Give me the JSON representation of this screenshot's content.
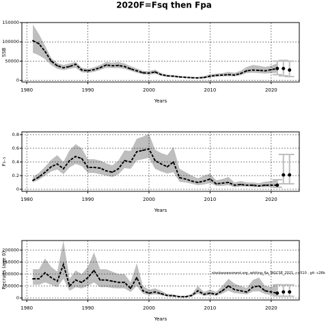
{
  "chart_data": [
    {
      "type": "line",
      "title": "2020F=Fsq then Fpa",
      "ylabel": "SSB",
      "xlabel": "Years",
      "x": [
        1981,
        1982,
        1983,
        1984,
        1985,
        1986,
        1987,
        1988,
        1989,
        1990,
        1991,
        1992,
        1993,
        1994,
        1995,
        1996,
        1997,
        1998,
        1999,
        2000,
        2001,
        2002,
        2003,
        2004,
        2005,
        2006,
        2007,
        2008,
        2009,
        2010,
        2011,
        2012,
        2013,
        2014,
        2015,
        2016,
        2017,
        2018,
        2019,
        2020,
        2021
      ],
      "values": [
        103000,
        95000,
        75000,
        50000,
        38000,
        33000,
        36000,
        42000,
        27000,
        25000,
        28000,
        33000,
        40000,
        38000,
        39000,
        36000,
        30000,
        25000,
        20000,
        19000,
        22000,
        15000,
        12000,
        11000,
        9000,
        8000,
        7000,
        6500,
        7500,
        11000,
        13000,
        14000,
        15000,
        14000,
        18000,
        25000,
        27000,
        26000,
        25000,
        28000,
        31000
      ],
      "lower": [
        72000,
        65000,
        55000,
        40000,
        30000,
        27000,
        30000,
        33000,
        21000,
        20000,
        22000,
        27000,
        33000,
        32000,
        32000,
        30000,
        25000,
        20000,
        16000,
        15000,
        17000,
        12000,
        9500,
        8500,
        7000,
        6000,
        5500,
        5000,
        5500,
        8000,
        10000,
        10500,
        11000,
        10500,
        13500,
        19000,
        20000,
        19000,
        18000,
        19000,
        20000
      ],
      "upper": [
        145000,
        120000,
        90000,
        58000,
        45000,
        40000,
        44000,
        48000,
        33000,
        30000,
        34000,
        40000,
        48000,
        46000,
        48000,
        44000,
        37000,
        31000,
        25000,
        24000,
        28000,
        19000,
        15000,
        14000,
        12000,
        10500,
        9500,
        9000,
        11000,
        16000,
        18000,
        19000,
        22000,
        20000,
        25000,
        35000,
        40000,
        38000,
        35000,
        38000,
        45000
      ],
      "forecast": {
        "x": [
          2021,
          2022,
          2023
        ],
        "values": [
          31000,
          31000,
          27000
        ],
        "lower": [
          15000,
          12000,
          10000
        ],
        "upper": [
          50000,
          52000,
          50000
        ]
      },
      "xlim": [
        1979.2,
        2024.6
      ],
      "xticks": [
        1980,
        1990,
        2000,
        2010,
        2020
      ],
      "ylim": [
        -4000,
        150000
      ],
      "yticks": [
        0,
        50000,
        100000,
        150000
      ],
      "grid": true,
      "color": "#000000",
      "band_color": "#bebebe",
      "forecast_color": "#bebebe"
    },
    {
      "type": "line",
      "ylabel": "F₃₋₅",
      "xlabel": "Years",
      "x": [
        1981,
        1982,
        1983,
        1984,
        1985,
        1986,
        1987,
        1988,
        1989,
        1990,
        1991,
        1992,
        1993,
        1994,
        1995,
        1996,
        1997,
        1998,
        1999,
        2000,
        2001,
        2002,
        2003,
        2004,
        2005,
        2006,
        2007,
        2008,
        2009,
        2010,
        2011,
        2012,
        2013,
        2014,
        2015,
        2016,
        2017,
        2018,
        2019,
        2020,
        2021
      ],
      "values": [
        0.13,
        0.18,
        0.25,
        0.33,
        0.37,
        0.3,
        0.42,
        0.48,
        0.45,
        0.32,
        0.32,
        0.31,
        0.27,
        0.25,
        0.3,
        0.42,
        0.4,
        0.55,
        0.57,
        0.59,
        0.42,
        0.37,
        0.33,
        0.4,
        0.17,
        0.15,
        0.12,
        0.1,
        0.12,
        0.15,
        0.08,
        0.09,
        0.1,
        0.06,
        0.07,
        0.06,
        0.06,
        0.05,
        0.06,
        0.06,
        0.06
      ],
      "lower": [
        0.1,
        0.14,
        0.2,
        0.26,
        0.29,
        0.22,
        0.32,
        0.37,
        0.34,
        0.24,
        0.24,
        0.22,
        0.2,
        0.18,
        0.22,
        0.31,
        0.3,
        0.42,
        0.44,
        0.46,
        0.3,
        0.26,
        0.23,
        0.25,
        0.11,
        0.1,
        0.08,
        0.06,
        0.07,
        0.09,
        0.05,
        0.05,
        0.06,
        0.03,
        0.04,
        0.04,
        0.03,
        0.03,
        0.03,
        0.03,
        0.03
      ],
      "upper": [
        0.18,
        0.24,
        0.33,
        0.43,
        0.5,
        0.4,
        0.57,
        0.66,
        0.6,
        0.44,
        0.44,
        0.42,
        0.38,
        0.35,
        0.42,
        0.57,
        0.56,
        0.74,
        0.77,
        0.81,
        0.58,
        0.53,
        0.5,
        0.62,
        0.3,
        0.25,
        0.2,
        0.16,
        0.2,
        0.23,
        0.13,
        0.15,
        0.18,
        0.1,
        0.12,
        0.1,
        0.1,
        0.09,
        0.11,
        0.12,
        0.14
      ],
      "forecast": {
        "x": [
          2021,
          2022,
          2023
        ],
        "values": [
          0.06,
          0.21,
          0.21
        ],
        "lower": [
          0.03,
          0.08,
          0.08
        ],
        "upper": [
          0.14,
          0.51,
          0.51
        ]
      },
      "xlim": [
        1979.2,
        2024.6
      ],
      "xticks": [
        1980,
        1990,
        2000,
        2010,
        2020
      ],
      "ylim": [
        -0.03,
        0.84
      ],
      "yticks": [
        0.0,
        0.2,
        0.4,
        0.6,
        0.8
      ],
      "grid": true,
      "color": "#000000",
      "band_color": "#bebebe",
      "forecast_color": "#bebebe"
    },
    {
      "type": "line",
      "ylabel": "Recruits (age 0)",
      "xlabel": "Years",
      "annotation": "stockassessment.org, whiting_6a_WGCSE_2021, r:4510 , git: c28b",
      "x": [
        1981,
        1982,
        1983,
        1984,
        1985,
        1986,
        1987,
        1988,
        1989,
        1990,
        1991,
        1992,
        1993,
        1994,
        1995,
        1996,
        1997,
        1998,
        1999,
        2000,
        2001,
        2002,
        2003,
        2004,
        2005,
        2006,
        2007,
        2008,
        2009,
        2010,
        2011,
        2012,
        2013,
        2014,
        2015,
        2016,
        2017,
        2018,
        2019,
        2020,
        2021
      ],
      "values": [
        80000,
        80000,
        105000,
        85000,
        70000,
        140000,
        50000,
        75000,
        65000,
        85000,
        115000,
        75000,
        75000,
        70000,
        65000,
        65000,
        40000,
        85000,
        30000,
        20000,
        25000,
        18000,
        10000,
        9000,
        5000,
        5000,
        10000,
        30000,
        15000,
        20000,
        15000,
        30000,
        50000,
        35000,
        30000,
        25000,
        45000,
        50000,
        30000,
        25000,
        20000
      ],
      "lower": [
        55000,
        55000,
        65000,
        55000,
        45000,
        80000,
        30000,
        45000,
        40000,
        50000,
        65000,
        45000,
        45000,
        42000,
        40000,
        40000,
        25000,
        50000,
        18000,
        12000,
        15000,
        11000,
        6000,
        5000,
        3000,
        3000,
        6000,
        18000,
        9000,
        12000,
        9000,
        18000,
        30000,
        20000,
        18000,
        15000,
        27000,
        28000,
        17000,
        12000,
        8000
      ],
      "upper": [
        120000,
        120000,
        165000,
        130000,
        110000,
        240000,
        80000,
        115000,
        100000,
        130000,
        190000,
        120000,
        120000,
        110000,
        100000,
        100000,
        65000,
        145000,
        50000,
        35000,
        40000,
        30000,
        17000,
        15000,
        9000,
        9000,
        17000,
        50000,
        25000,
        35000,
        25000,
        50000,
        80000,
        60000,
        50000,
        42000,
        75000,
        85000,
        50000,
        45000,
        60000
      ],
      "forecast": {
        "x": [
          2021,
          2022,
          2023
        ],
        "values": [
          20000,
          25000,
          25000
        ],
        "lower": [
          8000,
          7000,
          7000
        ],
        "upper": [
          55000,
          55000,
          55000
        ]
      },
      "xlim": [
        1979.2,
        2024.6
      ],
      "xticks": [
        1980,
        1990,
        2000,
        2010,
        2020
      ],
      "ylim": [
        -8500,
        240000
      ],
      "yticks": [
        0,
        50000,
        100000,
        150000,
        200000
      ],
      "grid": true,
      "color": "#000000",
      "band_color": "#bebebe",
      "forecast_color": "#bebebe"
    }
  ]
}
